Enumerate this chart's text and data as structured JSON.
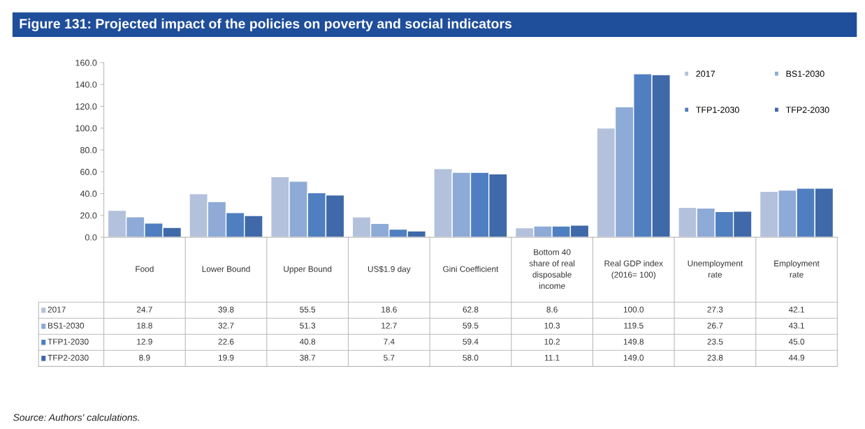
{
  "chart_data": {
    "type": "bar",
    "title": "Figure 131: Projected impact of the policies on poverty and social indicators",
    "categories": [
      "Food",
      "Lower Bound",
      "Upper Bound",
      "US$1.9 day",
      "Gini Coefficient",
      "Bottom 40\nshare of real\ndisposable\nincome",
      "Real GDP index\n(2016= 100)",
      "Unemployment\nrate",
      "Employment\nrate"
    ],
    "series": [
      {
        "name": "2017",
        "color": "#b4c1dc",
        "values": [
          24.7,
          39.8,
          55.5,
          18.6,
          62.8,
          8.6,
          100.0,
          27.3,
          42.1
        ],
        "value_labels": [
          "24.7",
          "39.8",
          "55.5",
          "18.6",
          "62.8",
          "8.6",
          "100.0",
          "27.3",
          "42.1"
        ]
      },
      {
        "name": "BS1-2030",
        "color": "#8eaad6",
        "values": [
          18.8,
          32.7,
          51.3,
          12.7,
          59.5,
          10.3,
          119.5,
          26.7,
          43.1
        ],
        "value_labels": [
          "18.8",
          "32.7",
          "51.3",
          "12.7",
          "59.5",
          "10.3",
          "119.5",
          "26.7",
          "43.1"
        ]
      },
      {
        "name": "TFP1-2030",
        "color": "#4f7fc0",
        "values": [
          12.9,
          22.6,
          40.8,
          7.4,
          59.4,
          10.2,
          149.8,
          23.5,
          45.0
        ],
        "value_labels": [
          "12.9",
          "22.6",
          "40.8",
          "7.4",
          "59.4",
          "10.2",
          "149.8",
          "23.5",
          "45.0"
        ]
      },
      {
        "name": "TFP2-2030",
        "color": "#3f69a8",
        "values": [
          8.9,
          19.9,
          38.7,
          5.7,
          58.0,
          11.1,
          149.0,
          23.8,
          44.9
        ],
        "value_labels": [
          "8.9",
          "19.9",
          "38.7",
          "5.7",
          "58.0",
          "11.1",
          "149.0",
          "23.8",
          "44.9"
        ]
      }
    ],
    "ylim": [
      0,
      160
    ],
    "yticks": [
      {
        "value": 0,
        "label": "0.0"
      },
      {
        "value": 20,
        "label": "20.0"
      },
      {
        "value": 40,
        "label": "40.0"
      },
      {
        "value": 60,
        "label": "60.0"
      },
      {
        "value": 80,
        "label": "80.0"
      },
      {
        "value": 100,
        "label": "100.0"
      },
      {
        "value": 120,
        "label": "120.0"
      },
      {
        "value": 140,
        "label": "140.0"
      },
      {
        "value": 160,
        "label": "160.0"
      }
    ],
    "legend": "top right",
    "annotations": [
      "Source: Authors' calculations."
    ]
  }
}
